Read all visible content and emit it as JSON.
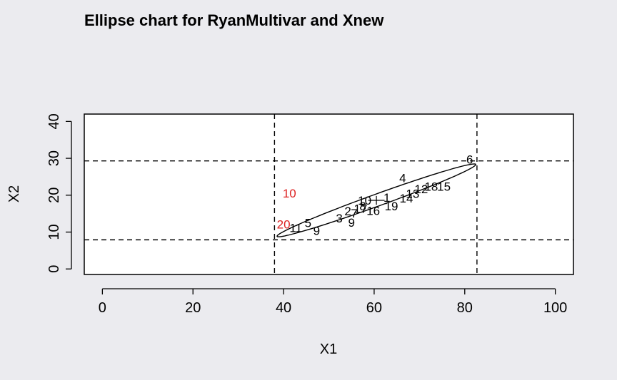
{
  "chart_data": {
    "type": "scatter",
    "title": "Ellipse chart for RyanMultivar and Xnew",
    "xlabel": "X1",
    "ylabel": "X2",
    "xlim": [
      -4,
      104
    ],
    "ylim": [
      -1.5,
      42
    ],
    "xticks": [
      "0",
      "20",
      "40",
      "60",
      "80",
      "100"
    ],
    "yticks": [
      "0",
      "10",
      "20",
      "30",
      "40"
    ],
    "grid": false,
    "colors": {
      "normal": "#000000",
      "out_of_control": "#dd2222",
      "background": "#ebebef",
      "plot_area": "#ffffff"
    },
    "control_limits": {
      "x_lower": 38,
      "x_upper": 82.7,
      "y_lower": 7.9,
      "y_upper": 29.3
    },
    "center": {
      "x": 60.5,
      "y": 18.6
    },
    "ellipse": {
      "center": [
        60.5,
        18.6
      ],
      "semi_major": 24.0,
      "semi_minor": 1.6,
      "angle_deg": 24.0
    },
    "points": [
      {
        "label": "1",
        "x": 62.8,
        "y": 19.3,
        "status": "normal"
      },
      {
        "label": "2",
        "x": 54.2,
        "y": 15.6,
        "status": "normal"
      },
      {
        "label": "3",
        "x": 52.3,
        "y": 13.7,
        "status": "normal"
      },
      {
        "label": "4",
        "x": 66.3,
        "y": 24.6,
        "status": "normal"
      },
      {
        "label": "5",
        "x": 45.4,
        "y": 12.4,
        "status": "normal"
      },
      {
        "label": "6",
        "x": 81.1,
        "y": 29.6,
        "status": "normal"
      },
      {
        "label": "7",
        "x": 55.6,
        "y": 15.0,
        "status": "normal"
      },
      {
        "label": "8",
        "x": 57.5,
        "y": 17.0,
        "status": "normal"
      },
      {
        "label": "9",
        "x": 47.3,
        "y": 10.3,
        "status": "normal"
      },
      {
        "label": "9",
        "x": 55.0,
        "y": 12.5,
        "status": "normal"
      },
      {
        "label": "10",
        "x": 57.9,
        "y": 18.5,
        "status": "normal"
      },
      {
        "label": "11",
        "x": 42.7,
        "y": 11.1,
        "status": "normal"
      },
      {
        "label": "12",
        "x": 70.4,
        "y": 21.6,
        "status": "normal"
      },
      {
        "label": "13",
        "x": 68.5,
        "y": 20.3,
        "status": "normal"
      },
      {
        "label": "14",
        "x": 67.1,
        "y": 19.1,
        "status": "normal"
      },
      {
        "label": "15",
        "x": 75.4,
        "y": 22.3,
        "status": "normal"
      },
      {
        "label": "16",
        "x": 59.8,
        "y": 15.7,
        "status": "normal"
      },
      {
        "label": "17",
        "x": 57.0,
        "y": 16.3,
        "status": "normal"
      },
      {
        "label": "18",
        "x": 72.6,
        "y": 22.3,
        "status": "normal"
      },
      {
        "label": "19",
        "x": 63.8,
        "y": 17.0,
        "status": "normal"
      },
      {
        "label": "20",
        "x": 40.0,
        "y": 12.0,
        "status": "out_of_control"
      },
      {
        "label": "10",
        "x": 41.3,
        "y": 20.4,
        "status": "out_of_control"
      }
    ]
  }
}
